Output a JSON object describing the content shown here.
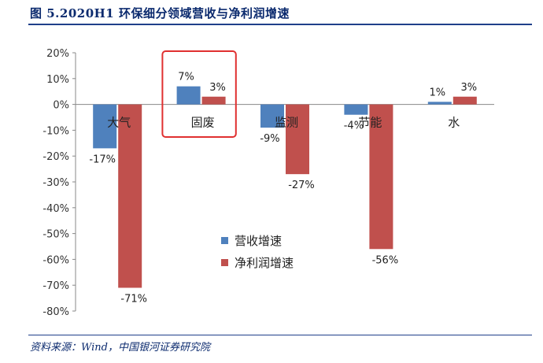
{
  "header": {
    "title": "图 5.2020H1 环保细分领域营收与净利润增速"
  },
  "footer": {
    "source": "资料来源：Wind，中国银河证券研究院"
  },
  "chart_data": {
    "type": "bar",
    "categories": [
      "大气",
      "固废",
      "监测",
      "节能",
      "水"
    ],
    "series": [
      {
        "name": "营收增速",
        "color": "#4f81bd",
        "values": [
          -17,
          7,
          -9,
          -4,
          1
        ],
        "labels": [
          "-17%",
          "7%",
          "-9%",
          "-4%",
          "1%"
        ]
      },
      {
        "name": "净利润增速",
        "color": "#c0504d",
        "values": [
          -71,
          3,
          -27,
          -56,
          3
        ],
        "labels": [
          "-71%",
          "3%",
          "-27%",
          "-56%",
          "3%"
        ]
      }
    ],
    "yticks": [
      "20%",
      "10%",
      "0%",
      "-10%",
      "-20%",
      "-30%",
      "-40%",
      "-50%",
      "-60%",
      "-70%",
      "-80%"
    ],
    "ylim": [
      -80,
      20
    ],
    "highlight": {
      "category": "固废",
      "color": "#e03030"
    },
    "legend": "center",
    "grid": false
  }
}
